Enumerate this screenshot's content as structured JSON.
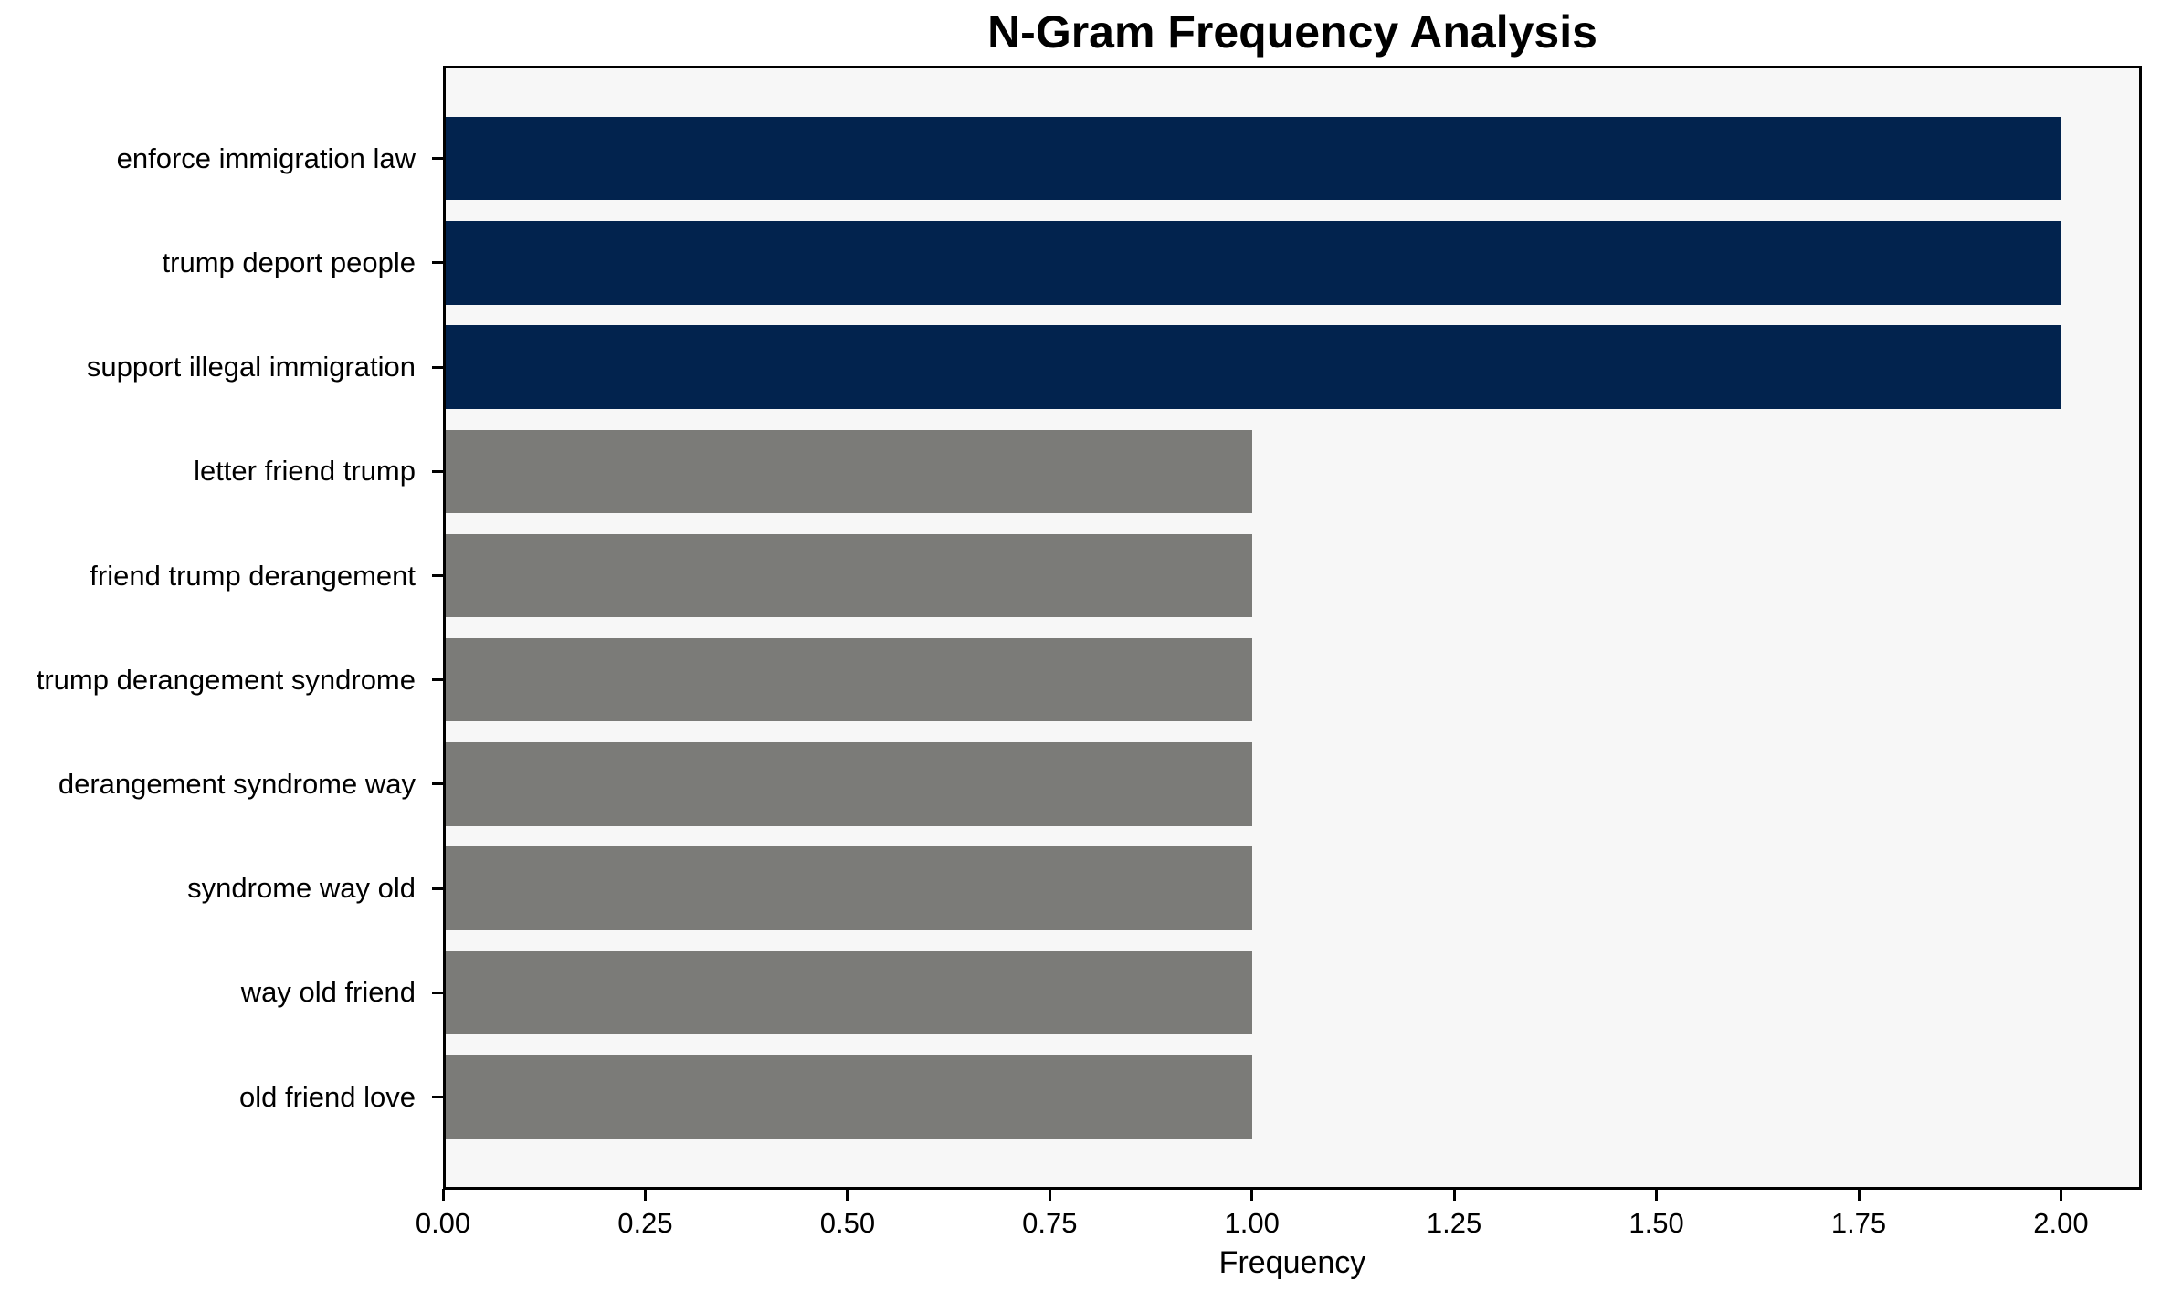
{
  "chart_data": {
    "type": "bar",
    "orientation": "horizontal",
    "title": "N-Gram Frequency Analysis",
    "xlabel": "Frequency",
    "ylabel": "",
    "categories": [
      "enforce immigration law",
      "trump deport people",
      "support illegal immigration",
      "letter friend trump",
      "friend trump derangement",
      "trump derangement syndrome",
      "derangement syndrome way",
      "syndrome way old",
      "way old friend",
      "old friend love"
    ],
    "values": [
      2,
      2,
      2,
      1,
      1,
      1,
      1,
      1,
      1,
      1
    ],
    "bar_colors": [
      "#02234e",
      "#02234e",
      "#02234e",
      "#7b7b78",
      "#7b7b78",
      "#7b7b78",
      "#7b7b78",
      "#7b7b78",
      "#7b7b78",
      "#7b7b78"
    ],
    "xlim": [
      0,
      2.1
    ],
    "x_ticks": [
      0,
      0.25,
      0.5,
      0.75,
      1.0,
      1.25,
      1.5,
      1.75,
      2.0
    ],
    "x_tick_labels": [
      "0.00",
      "0.25",
      "0.50",
      "0.75",
      "1.00",
      "1.25",
      "1.50",
      "1.75",
      "2.00"
    ],
    "grid": false,
    "legend": null,
    "colors": {
      "highlight_bar": "#02234e",
      "default_bar": "#7b7b78",
      "plot_background": "#f7f7f7",
      "figure_background": "#ffffff",
      "spine": "#000000",
      "text": "#000000"
    }
  }
}
